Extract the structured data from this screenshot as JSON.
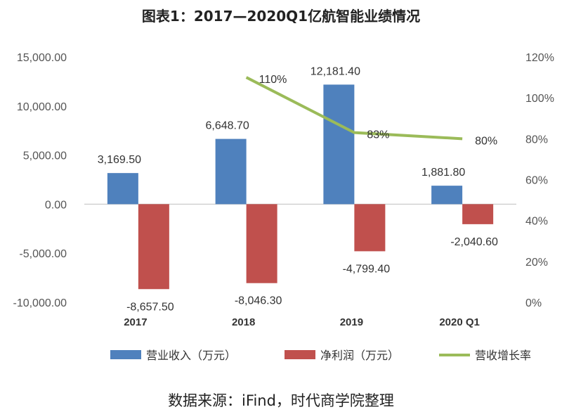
{
  "title": "图表1：2017—2020Q1亿航智能业绩情况",
  "source": "数据来源：iFind，时代商学院整理",
  "chart_data": {
    "type": "bar",
    "categories": [
      "2017",
      "2018",
      "2019",
      "2020 Q1"
    ],
    "series": [
      {
        "name": "营业收入（万元）",
        "type": "bar",
        "axis": "left",
        "color": "#4F81BD",
        "values": [
          3169.5,
          6648.7,
          12181.4,
          1881.8
        ],
        "labels": [
          "3,169.50",
          "6,648.70",
          "12,181.40",
          "1,881.80"
        ]
      },
      {
        "name": "净利润（万元）",
        "type": "bar",
        "axis": "left",
        "color": "#C0504D",
        "values": [
          -8657.5,
          -8046.3,
          -4799.4,
          -2040.6
        ],
        "labels": [
          "-8,657.50",
          "-8,046.30",
          "-4,799.40",
          "-2,040.60"
        ]
      },
      {
        "name": "营收增长率",
        "type": "line",
        "axis": "right",
        "color": "#9BBB59",
        "values": [
          null,
          110,
          83,
          80
        ],
        "labels": [
          "",
          "110%",
          "83%",
          "80%"
        ]
      }
    ],
    "left_axis": {
      "min": -10000,
      "max": 15000,
      "step": 5000,
      "tick_labels": [
        "-10,000.00",
        "-5,000.00",
        "0.00",
        "5,000.00",
        "10,000.00",
        "15,000.00"
      ]
    },
    "right_axis": {
      "min": 0,
      "max": 120,
      "step": 20,
      "tick_labels": [
        "0%",
        "20%",
        "40%",
        "60%",
        "80%",
        "100%",
        "120%"
      ]
    },
    "grid": false,
    "legend": "bottom"
  }
}
